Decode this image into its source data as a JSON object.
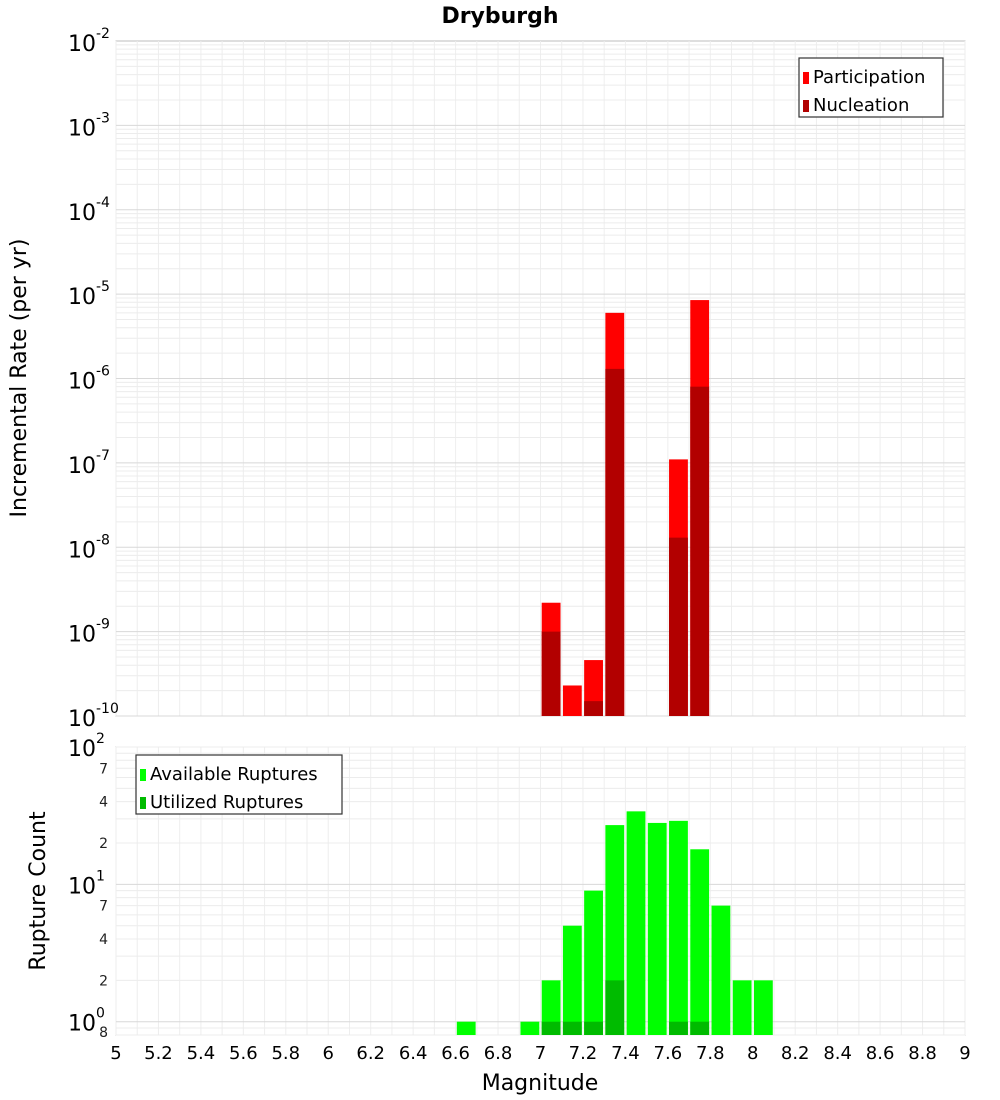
{
  "chart_data": [
    {
      "type": "bar",
      "title": "Dryburgh",
      "xlabel": "",
      "ylabel": "Incremental Rate (per yr)",
      "xlim": [
        5,
        9
      ],
      "ylim": [
        1e-10,
        0.01
      ],
      "yscale": "log",
      "grid": true,
      "legend_position": "top-right",
      "y_tick_labels": [
        {
          "base": "10",
          "exp": "-2"
        },
        {
          "base": "10",
          "exp": "-3"
        },
        {
          "base": "10",
          "exp": "-4"
        },
        {
          "base": "10",
          "exp": "-5"
        },
        {
          "base": "10",
          "exp": "-6"
        },
        {
          "base": "10",
          "exp": "-7"
        },
        {
          "base": "10",
          "exp": "-8"
        },
        {
          "base": "10",
          "exp": "-9"
        },
        {
          "base": "10",
          "exp": "-10"
        }
      ],
      "bar_width": 0.1,
      "series": [
        {
          "name": "Participation",
          "color": "#ff0000",
          "x": [
            7.05,
            7.15,
            7.25,
            7.35,
            7.65,
            7.75
          ],
          "values": [
            2.2e-09,
            2.3e-10,
            4.6e-10,
            6e-06,
            1.1e-07,
            8.5e-06
          ]
        },
        {
          "name": "Nucleation",
          "color": "#b20000",
          "x": [
            7.05,
            7.25,
            7.35,
            7.65,
            7.75
          ],
          "values": [
            1e-09,
            1.5e-10,
            1.3e-06,
            1.3e-08,
            8e-07
          ]
        }
      ]
    },
    {
      "type": "bar",
      "xlabel": "Magnitude",
      "ylabel": "Rupture Count",
      "xlim": [
        5,
        9
      ],
      "ylim": [
        0.8,
        100
      ],
      "yscale": "log",
      "grid": true,
      "legend_position": "top-left",
      "x_tick_labels": [
        "5",
        "5.2",
        "5.4",
        "5.6",
        "5.8",
        "6",
        "6.2",
        "6.4",
        "6.6",
        "6.8",
        "7",
        "7.2",
        "7.4",
        "7.6",
        "7.8",
        "8",
        "8.2",
        "8.4",
        "8.6",
        "8.8",
        "9"
      ],
      "y_tick_labels": [
        {
          "value": 100,
          "base": "10",
          "exp": "2"
        },
        {
          "value": 10,
          "base": "10",
          "exp": "1"
        },
        {
          "value": 1,
          "base": "10",
          "exp": "0"
        }
      ],
      "minor_tick_labels": [
        {
          "value": 70,
          "label": "7"
        },
        {
          "value": 40,
          "label": "4"
        },
        {
          "value": 20,
          "label": "2"
        },
        {
          "value": 7,
          "label": "7"
        },
        {
          "value": 4,
          "label": "4"
        },
        {
          "value": 2,
          "label": "2"
        },
        {
          "value": 0.8,
          "label": "8"
        }
      ],
      "bar_width": 0.1,
      "series": [
        {
          "name": "Available Ruptures",
          "color": "#00ff00",
          "x": [
            6.65,
            6.95,
            7.05,
            7.15,
            7.25,
            7.35,
            7.45,
            7.55,
            7.65,
            7.75,
            7.85,
            7.95,
            8.05
          ],
          "values": [
            1,
            1,
            2,
            5,
            9,
            27,
            34,
            28,
            29,
            18,
            7,
            2,
            2
          ]
        },
        {
          "name": "Utilized Ruptures",
          "color": "#00bb00",
          "x": [
            7.05,
            7.15,
            7.25,
            7.35,
            7.65,
            7.75
          ],
          "values": [
            1,
            1,
            1,
            2,
            1,
            1
          ]
        }
      ]
    }
  ]
}
